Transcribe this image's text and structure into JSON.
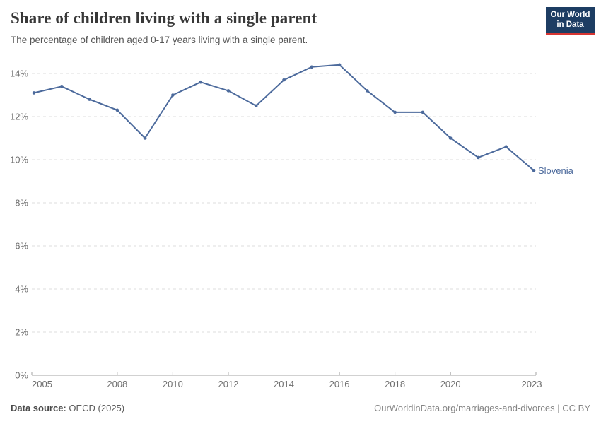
{
  "header": {
    "title": "Share of children living with a single parent",
    "subtitle": "The percentage of children aged 0-17 years living with a single parent.",
    "logo": {
      "line1": "Our World",
      "line2": "in Data"
    }
  },
  "footer": {
    "source_label": "Data source:",
    "source_value": " OECD (2025)",
    "credit": "OurWorldinData.org/marriages-and-divorces | CC BY"
  },
  "colors": {
    "line": "#4c6a9c",
    "grid": "#dcdcdc",
    "axis": "#a3a3a3",
    "tick_text": "#6e6e6e",
    "logo_bg": "#1d3d63",
    "logo_stripe": "#d73532"
  },
  "chart_data": {
    "type": "line",
    "title": "Share of children living with a single parent",
    "subtitle": "The percentage of children aged 0-17 years living with a single parent.",
    "x": [
      2005,
      2006,
      2007,
      2008,
      2009,
      2010,
      2011,
      2012,
      2013,
      2014,
      2015,
      2016,
      2017,
      2018,
      2019,
      2020,
      2021,
      2022,
      2023
    ],
    "series": [
      {
        "name": "Slovenia",
        "color": "#4c6a9c",
        "values": [
          13.1,
          13.4,
          12.8,
          12.3,
          11.0,
          13.0,
          13.6,
          13.2,
          12.5,
          13.7,
          14.3,
          14.4,
          13.2,
          12.2,
          12.2,
          11.0,
          10.1,
          10.6,
          9.5
        ]
      }
    ],
    "x_ticks": [
      2005,
      2008,
      2010,
      2012,
      2014,
      2016,
      2018,
      2020,
      2023
    ],
    "y_ticks": [
      0,
      2,
      4,
      6,
      8,
      10,
      12,
      14
    ],
    "y_tick_suffix": "%",
    "xlim": [
      2005,
      2023
    ],
    "ylim": [
      0,
      14
    ],
    "grid": true,
    "gridline_style": "dashed",
    "legend_position": "end-of-line",
    "end_label": "Slovenia"
  }
}
